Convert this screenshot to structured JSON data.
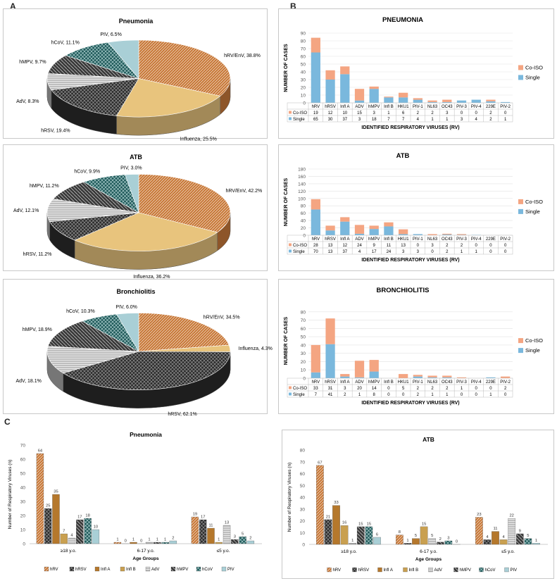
{
  "panel_labels": {
    "a": "A",
    "b": "B",
    "c": "C"
  },
  "colors": {
    "co_iso": "#f4a582",
    "single": "#7ab8dd",
    "hRV": "#c97a3a",
    "hRSV": "#2b2b2b",
    "Influenza": "#e8c47d",
    "Infl A": "#b5782c",
    "Infl B": "#c9a050",
    "AdV": "#a8a8a8",
    "hMPV": "#3a3a3a",
    "hCoV": "#1f5a5a",
    "PIV": "#a9cfd6"
  },
  "chart_data": [
    {
      "id": "pie-pneumonia",
      "type": "pie",
      "title": "Pneumonia",
      "slices": [
        {
          "label": "hRV/EnV, 38.8%",
          "key": "hRV",
          "value": 38.8
        },
        {
          "label": "Influenza, 25.5%",
          "key": "Influenza",
          "value": 25.5
        },
        {
          "label": "hRSV, 19.4%",
          "key": "hRSV",
          "value": 19.4
        },
        {
          "label": "AdV, 8.3%",
          "key": "AdV",
          "value": 8.3
        },
        {
          "label": "hMPV, 9.7%",
          "key": "hMPV",
          "value": 9.7
        },
        {
          "label": "hCoV, 11.1%",
          "key": "hCoV",
          "value": 11.1
        },
        {
          "label": "PIV, 6.5%",
          "key": "PIV",
          "value": 6.5
        }
      ]
    },
    {
      "id": "pie-atb",
      "type": "pie",
      "title": "ATB",
      "slices": [
        {
          "label": "hRV/EnV, 42.2%",
          "key": "hRV",
          "value": 42.2
        },
        {
          "label": "Influenza, 36.2%",
          "key": "Influenza",
          "value": 36.2
        },
        {
          "label": "hRSV, 11.2%",
          "key": "hRSV",
          "value": 11.2
        },
        {
          "label": "AdV, 12.1%",
          "key": "AdV",
          "value": 12.1
        },
        {
          "label": "hMPV, 11.2%",
          "key": "hMPV",
          "value": 11.2
        },
        {
          "label": "hCoV, 9.9%",
          "key": "hCoV",
          "value": 9.9
        },
        {
          "label": "PIV, 3.0%",
          "key": "PIV",
          "value": 3.0
        }
      ]
    },
    {
      "id": "pie-bronchiolitis",
      "type": "pie",
      "title": "Bronchiolitis",
      "slices": [
        {
          "label": "hRV/EnV, 34.5%",
          "key": "hRV",
          "value": 34.5
        },
        {
          "label": "Influenza, 4.3%",
          "key": "Influenza",
          "value": 4.3
        },
        {
          "label": "hRSV, 62.1%",
          "key": "hRSV",
          "value": 62.1
        },
        {
          "label": "AdV, 18.1%",
          "key": "AdV",
          "value": 18.1
        },
        {
          "label": "hMPV, 18.9%",
          "key": "hMPV",
          "value": 18.9
        },
        {
          "label": "hCoV, 10.3%",
          "key": "hCoV",
          "value": 10.3
        },
        {
          "label": "PIV, 6.0%",
          "key": "PIV",
          "value": 6.0
        }
      ]
    },
    {
      "id": "bar-pneumonia",
      "type": "bar",
      "stacked": true,
      "title": "PNEUMONIA",
      "ylabel": "NUMBER OF CASES",
      "xlabel": "IDENTIFIED RESPIRATORY VIRUSES (RV)",
      "ylim": [
        0,
        90
      ],
      "yticks": [
        0,
        10,
        20,
        30,
        40,
        50,
        60,
        70,
        80,
        90
      ],
      "categories": [
        "hRV",
        "hRSV",
        "Infl A",
        "ADV",
        "hMPV",
        "Infl B",
        "HKU1",
        "PIV-1",
        "NL63",
        "OC43",
        "PIV-3",
        "PIV-4",
        "229E",
        "PIV-2"
      ],
      "series": [
        {
          "name": "Single",
          "color": "#7ab8dd",
          "values": [
            65,
            30,
            37,
            3,
            18,
            7,
            7,
            4,
            1,
            1,
            3,
            4,
            2,
            1
          ]
        },
        {
          "name": "Co-ISO",
          "color": "#f4a582",
          "values": [
            19,
            12,
            10,
            15,
            3,
            1,
            6,
            2,
            2,
            3,
            0,
            0,
            2,
            0
          ]
        }
      ],
      "table_rows": [
        "Co-ISO",
        "Single"
      ],
      "legend": "right"
    },
    {
      "id": "bar-atb",
      "type": "bar",
      "stacked": true,
      "title": "ATB",
      "ylabel": "NUMBER OF CASES",
      "xlabel": "IDENTIFIED RESPIRATORY VIRUSES (RV)",
      "ylim": [
        0,
        180
      ],
      "yticks": [
        0,
        20,
        40,
        60,
        80,
        100,
        120,
        140,
        160,
        180
      ],
      "categories": [
        "hRV",
        "hRSV",
        "Infl A",
        "ADV",
        "hMPV",
        "Infl B",
        "HKU1",
        "PIV-1",
        "NL63",
        "OC43",
        "PIV-3",
        "PIV-4",
        "229E",
        "PIV-2"
      ],
      "series": [
        {
          "name": "Single",
          "color": "#7ab8dd",
          "values": [
            70,
            13,
            37,
            4,
            17,
            24,
            3,
            3,
            0,
            2,
            1,
            1,
            0,
            0
          ]
        },
        {
          "name": "Co-ISO",
          "color": "#f4a582",
          "values": [
            28,
            13,
            12,
            24,
            9,
            11,
            13,
            0,
            3,
            2,
            2,
            0,
            0,
            0
          ]
        }
      ],
      "table_rows": [
        "Co-ISO",
        "Single"
      ],
      "legend": "right"
    },
    {
      "id": "bar-bronchiolitis",
      "type": "bar",
      "stacked": true,
      "title": "BRONCHIOLITIS",
      "ylabel": "NUMBER OF CASES",
      "xlabel": "IDENTIFIED RESPIRATORY VIRUSES (RV)",
      "ylim": [
        0,
        90
      ],
      "yticks": [
        0,
        10,
        20,
        30,
        40,
        50,
        60,
        70,
        80
      ],
      "categories": [
        "hRV",
        "hRSV",
        "Infl A",
        "ADV",
        "hMPV",
        "Infl B",
        "HKU1",
        "PIV-1",
        "NL63",
        "OC43",
        "PIV-3",
        "PIV-4",
        "229E",
        "PIV-2"
      ],
      "series": [
        {
          "name": "Single",
          "color": "#7ab8dd",
          "values": [
            7,
            41,
            2,
            1,
            8,
            0,
            0,
            2,
            1,
            1,
            0,
            0,
            1,
            0
          ]
        },
        {
          "name": "Co-ISO",
          "color": "#f4a582",
          "values": [
            33,
            31,
            3,
            20,
            14,
            0,
            5,
            2,
            2,
            2,
            1,
            0,
            0,
            2
          ]
        }
      ],
      "table_rows": [
        "Co-ISO",
        "Single"
      ],
      "legend": "right"
    },
    {
      "id": "group-pneumonia",
      "type": "bar",
      "title": "Pneumonia",
      "ylabel": "Number of Respiratory Viruses (n)",
      "xlabel": "Age Groups",
      "ylim": [
        0,
        70
      ],
      "yticks": [
        0,
        10,
        20,
        30,
        40,
        50,
        60,
        70
      ],
      "categories": [
        "≥18 y.o.",
        "6-17 y.o.",
        "≤5 y.o."
      ],
      "series": [
        {
          "name": "hRV",
          "key": "hRV",
          "values": [
            64,
            1,
            19
          ]
        },
        {
          "name": "hRSV",
          "key": "hRSV",
          "values": [
            25,
            0,
            17
          ]
        },
        {
          "name": "Infl A",
          "key": "Infl A",
          "values": [
            35,
            1,
            11
          ]
        },
        {
          "name": "Infl B",
          "key": "Infl B",
          "values": [
            7,
            0,
            1
          ]
        },
        {
          "name": "AdV",
          "key": "AdV",
          "values": [
            4,
            1,
            13
          ]
        },
        {
          "name": "hMPV",
          "key": "hMPV",
          "values": [
            17,
            1,
            3
          ]
        },
        {
          "name": "hCoV",
          "key": "hCoV",
          "values": [
            18,
            1,
            5
          ]
        },
        {
          "name": "PIV",
          "key": "PIV",
          "values": [
            10,
            2,
            2
          ]
        }
      ],
      "legend": "bottom"
    },
    {
      "id": "group-atb",
      "type": "bar",
      "title": "ATB",
      "ylabel": "Number of Respiratory Viruses (n)",
      "xlabel": "Age Groups",
      "ylim": [
        0,
        80
      ],
      "yticks": [
        0,
        10,
        20,
        30,
        40,
        50,
        60,
        70,
        80
      ],
      "categories": [
        "≥18 y.o.",
        "6-17 y.o.",
        "≤5 y.o."
      ],
      "series": [
        {
          "name": "hRV",
          "key": "hRV",
          "values": [
            67,
            8,
            23
          ]
        },
        {
          "name": "hRSV",
          "key": "hRSV",
          "values": [
            21,
            1,
            4
          ]
        },
        {
          "name": "Infl A",
          "key": "Infl A",
          "values": [
            33,
            5,
            11
          ]
        },
        {
          "name": "Infl B",
          "key": "Infl B",
          "values": [
            16,
            15,
            4
          ]
        },
        {
          "name": "AdV",
          "key": "AdV",
          "values": [
            1,
            5,
            22
          ]
        },
        {
          "name": "hMPV",
          "key": "hMPV",
          "values": [
            15,
            2,
            9
          ]
        },
        {
          "name": "hCoV",
          "key": "hCoV",
          "values": [
            15,
            3,
            5
          ]
        },
        {
          "name": "PIV",
          "key": "PIV",
          "values": [
            6,
            0,
            1
          ]
        }
      ],
      "legend": "bottom"
    }
  ]
}
